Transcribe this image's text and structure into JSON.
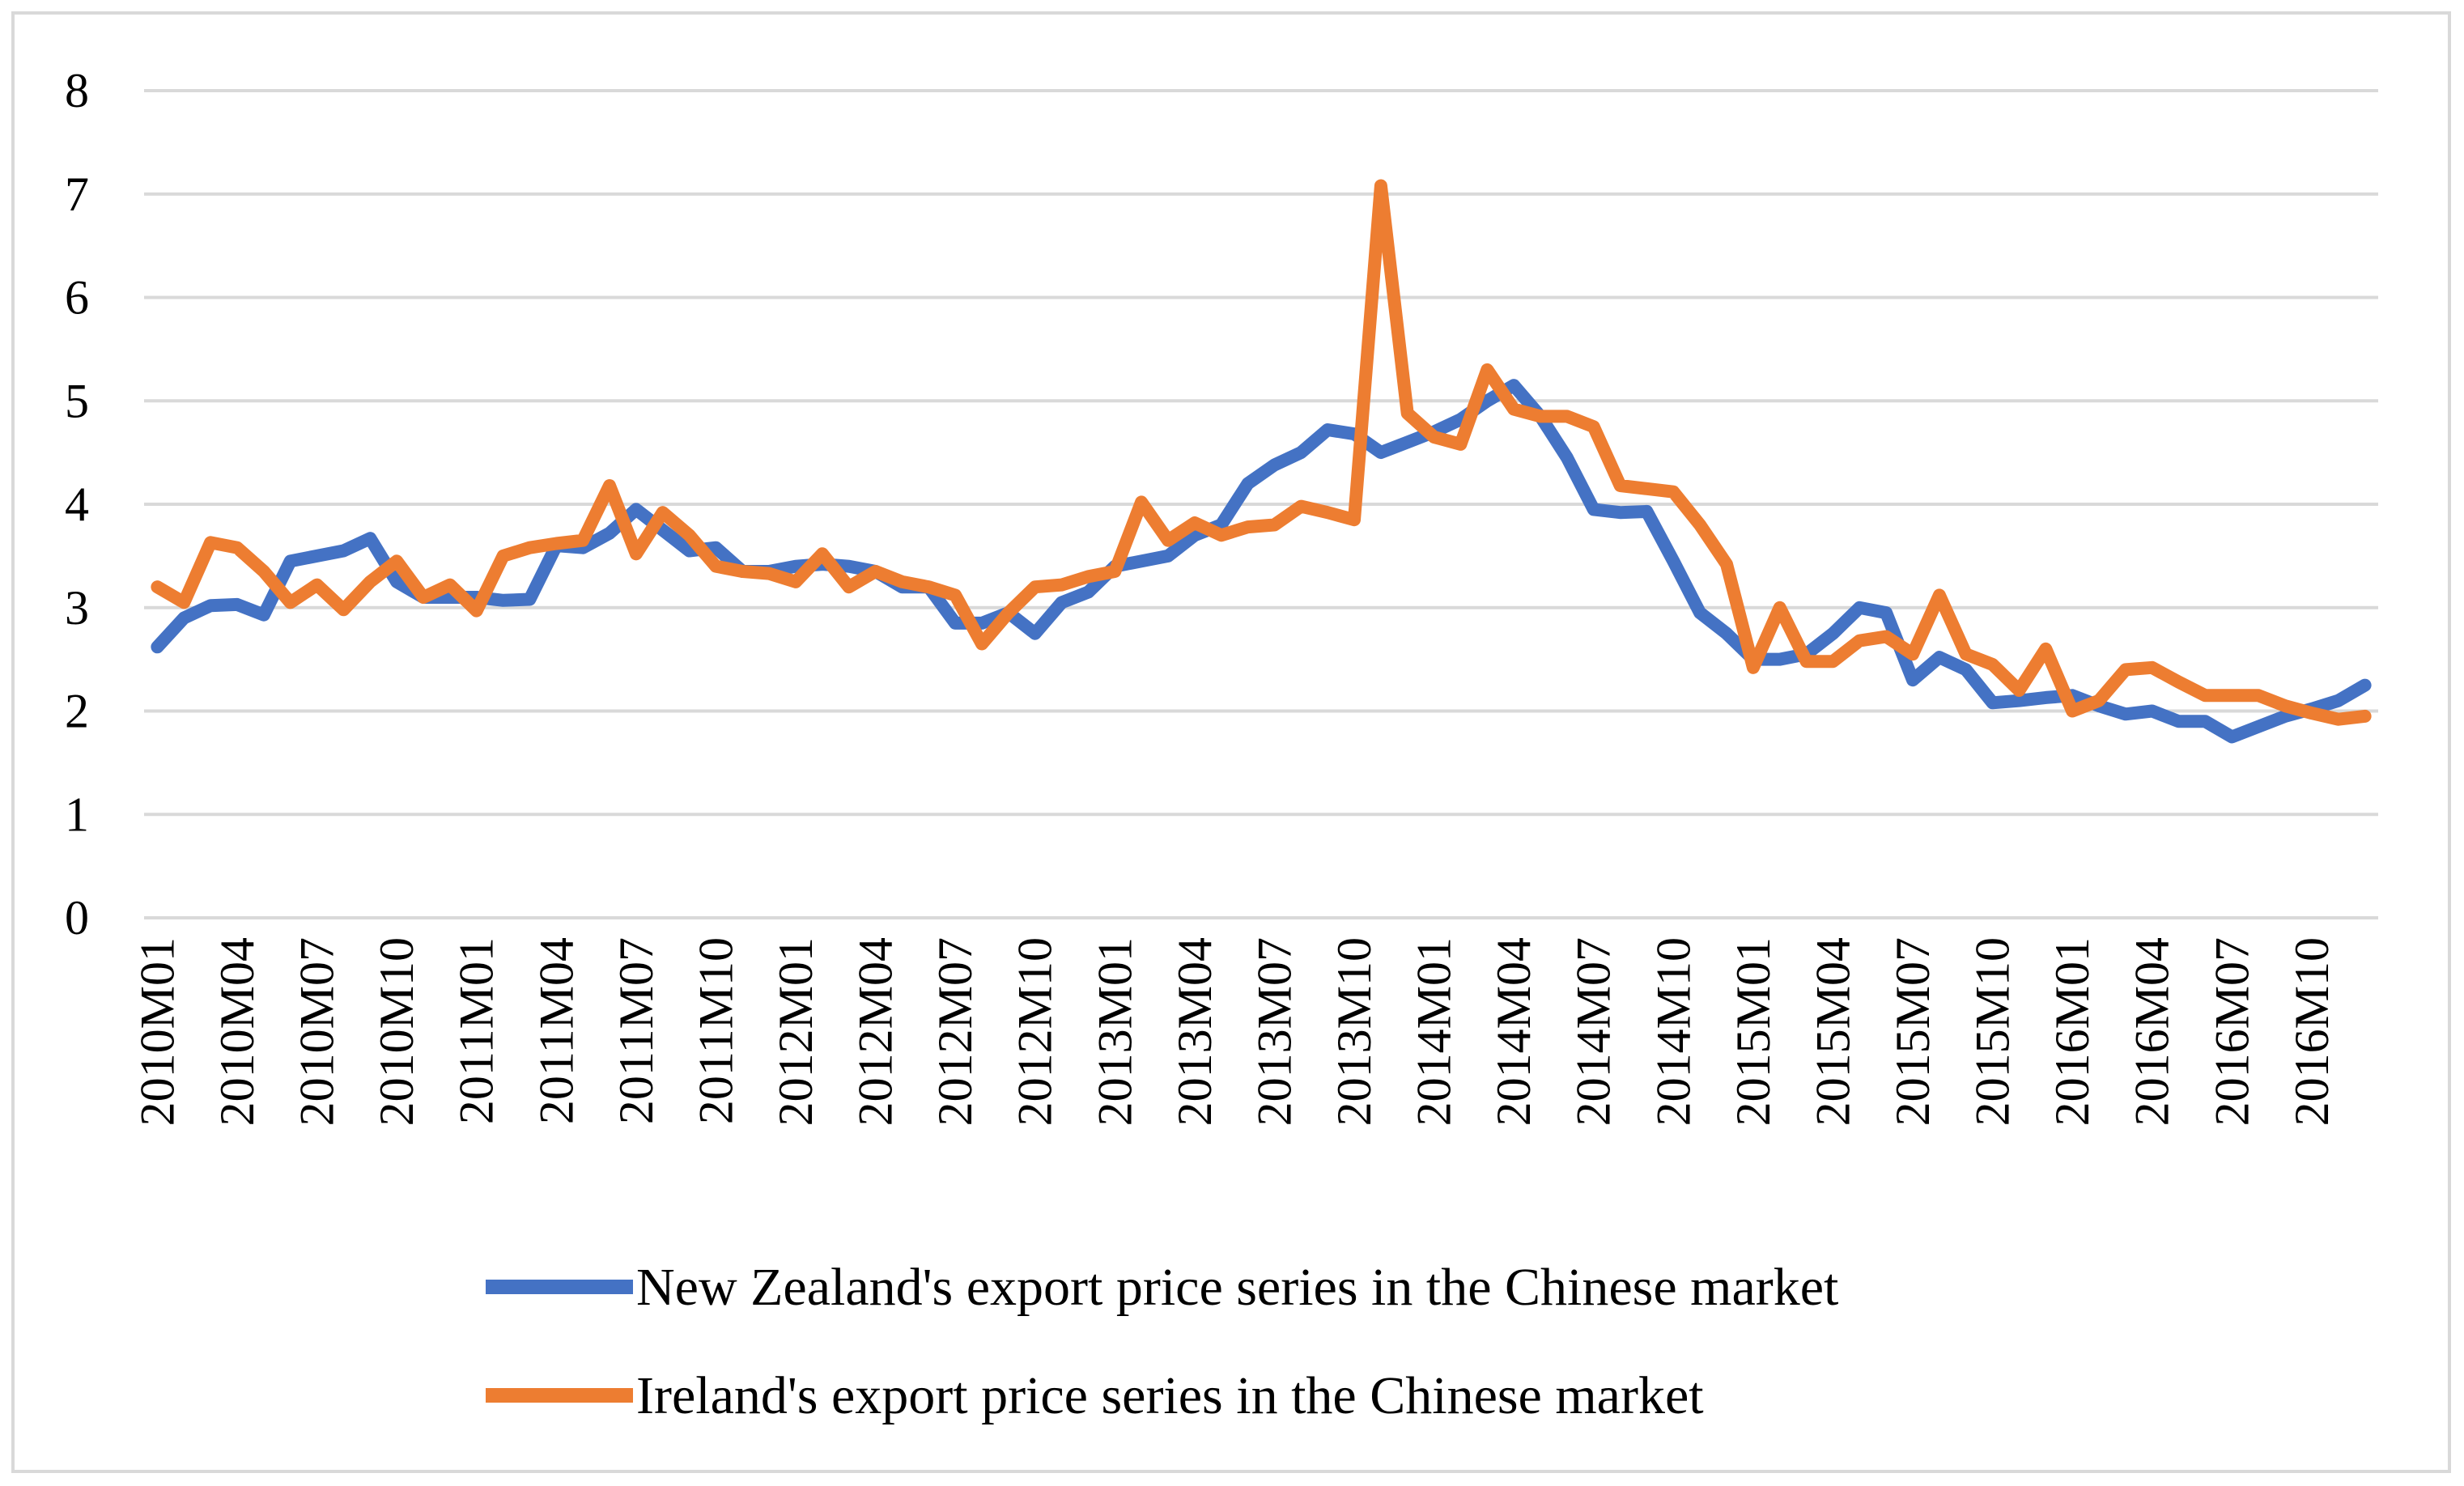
{
  "chart_data": {
    "type": "line",
    "title": "",
    "xlabel": "",
    "ylabel": "",
    "ylim": [
      0,
      8
    ],
    "yticks": [
      0,
      1,
      2,
      3,
      4,
      5,
      6,
      7,
      8
    ],
    "grid": true,
    "legend_position": "bottom",
    "x_tick_labels": [
      "2010M01",
      "2010M04",
      "2010M07",
      "2010M10",
      "2011M01",
      "2011M04",
      "2011M07",
      "2011M10",
      "2012M01",
      "2012M04",
      "2012M07",
      "2012M10",
      "2013M01",
      "2013M04",
      "2013M07",
      "2013M10",
      "2014M01",
      "2014M04",
      "2014M07",
      "2014M10",
      "2015M01",
      "2015M04",
      "2015M07",
      "2015M10",
      "2016M01",
      "2016M04",
      "2016M07",
      "2016M10"
    ],
    "series": [
      {
        "name": "New Zealand's export price series in the Chinese market",
        "color": "#4472c4",
        "values": [
          2.62,
          2.9,
          3.02,
          3.03,
          2.93,
          3.45,
          3.5,
          3.55,
          3.67,
          3.25,
          3.1,
          3.1,
          3.1,
          3.07,
          3.08,
          3.6,
          3.58,
          3.72,
          3.95,
          3.75,
          3.55,
          3.58,
          3.35,
          3.35,
          3.4,
          3.42,
          3.4,
          3.35,
          3.2,
          3.2,
          2.85,
          2.85,
          2.95,
          2.75,
          3.05,
          3.15,
          3.4,
          3.45,
          3.5,
          3.7,
          3.8,
          4.2,
          4.38,
          4.5,
          4.72,
          4.68,
          4.5,
          4.6,
          4.7,
          4.82,
          5.0,
          5.15,
          4.85,
          4.45,
          3.95,
          3.92,
          3.93,
          3.45,
          2.95,
          2.75,
          2.5,
          2.5,
          2.55,
          2.75,
          3.0,
          2.95,
          2.3,
          2.52,
          2.4,
          2.08,
          2.1,
          2.13,
          2.15,
          2.05,
          1.97,
          2.0,
          1.9,
          1.9,
          1.75,
          1.85,
          1.95,
          2.02,
          2.1,
          2.25
        ]
      },
      {
        "name": "Ireland's export price series in the Chinese market",
        "color": "#ed7d31",
        "values": [
          3.2,
          3.05,
          3.63,
          3.58,
          3.35,
          3.05,
          3.22,
          2.98,
          3.25,
          3.45,
          3.1,
          3.22,
          2.97,
          3.5,
          3.58,
          3.62,
          3.65,
          4.18,
          3.52,
          3.92,
          3.7,
          3.4,
          3.35,
          3.33,
          3.25,
          3.52,
          3.2,
          3.35,
          3.25,
          3.2,
          3.12,
          2.65,
          2.95,
          3.2,
          3.22,
          3.3,
          3.35,
          4.02,
          3.65,
          3.82,
          3.7,
          3.78,
          3.8,
          3.98,
          3.92,
          3.85,
          7.08,
          4.88,
          4.65,
          4.58,
          5.3,
          4.92,
          4.85,
          4.85,
          4.75,
          4.18,
          4.15,
          4.12,
          3.8,
          3.42,
          2.42,
          3.0,
          2.48,
          2.48,
          2.68,
          2.72,
          2.55,
          3.12,
          2.55,
          2.45,
          2.2,
          2.6,
          2.0,
          2.1,
          2.4,
          2.42,
          2.28,
          2.15,
          2.15,
          2.15,
          2.05,
          1.98,
          1.92,
          1.95
        ]
      }
    ]
  }
}
